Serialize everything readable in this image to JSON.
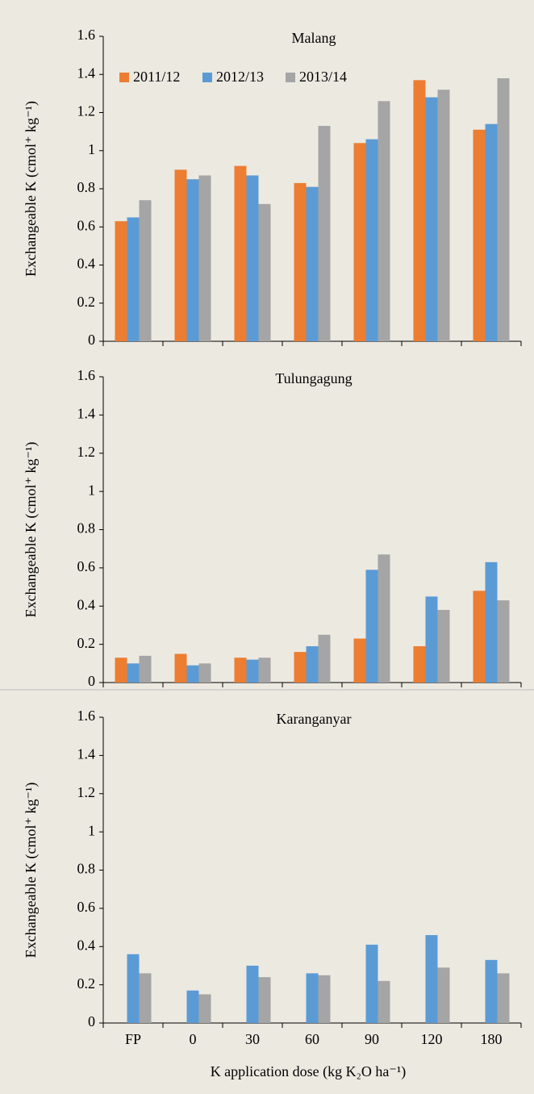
{
  "chart_data": [
    {
      "type": "bar",
      "title": "Malang",
      "y_label": "Exchangeable K (cmol⁺ kg⁻¹)",
      "legend": "top-left",
      "ylim": [
        0,
        1.6
      ],
      "yticks": [
        0,
        0.2,
        0.4,
        0.6,
        0.8,
        1,
        1.2,
        1.4,
        1.6
      ],
      "series": [
        {
          "name": "2011/12",
          "color": "#ed7d31",
          "values": [
            0.63,
            0.9,
            0.92,
            0.83,
            1.04,
            1.37,
            1.11
          ]
        },
        {
          "name": "2012/13",
          "color": "#5b9bd5",
          "values": [
            0.65,
            0.85,
            0.87,
            0.81,
            1.06,
            1.28,
            1.14
          ]
        },
        {
          "name": "2013/14",
          "color": "#a5a5a5",
          "values": [
            0.74,
            0.87,
            0.72,
            1.13,
            1.26,
            1.32,
            1.38
          ]
        }
      ]
    },
    {
      "type": "bar",
      "title": "Tulungagung",
      "y_label": "Exchangeable K (cmol⁺ kg⁻¹)",
      "ylim": [
        0,
        1.6
      ],
      "yticks": [
        0,
        0.2,
        0.4,
        0.6,
        0.8,
        1,
        1.2,
        1.4,
        1.6
      ],
      "series": [
        {
          "color": "#ed7d31",
          "values": [
            0.13,
            0.15,
            0.13,
            0.16,
            0.23,
            0.19,
            0.48
          ]
        },
        {
          "color": "#5b9bd5",
          "values": [
            0.1,
            0.09,
            0.12,
            0.19,
            0.59,
            0.45,
            0.63
          ]
        },
        {
          "color": "#a5a5a5",
          "values": [
            0.14,
            0.1,
            0.13,
            0.25,
            0.67,
            0.38,
            0.43
          ]
        }
      ]
    },
    {
      "type": "bar",
      "title": "Karanganyar",
      "y_label": "Exchangeable K (cmol⁺ kg⁻¹)",
      "x_label": "K application dose (kg K₂O ha⁻¹)",
      "categories": [
        "FP",
        "0",
        "30",
        "60",
        "90",
        "120",
        "180"
      ],
      "ylim": [
        0,
        1.6
      ],
      "yticks": [
        0,
        0.2,
        0.4,
        0.6,
        0.8,
        1,
        1.2,
        1.4,
        1.6
      ],
      "series": [
        {
          "color": "#ed7d31",
          "values": [
            null,
            null,
            null,
            null,
            null,
            null,
            null
          ]
        },
        {
          "color": "#5b9bd5",
          "values": [
            0.36,
            0.17,
            0.3,
            0.26,
            0.41,
            0.46,
            0.33
          ]
        },
        {
          "color": "#a5a5a5",
          "values": [
            0.26,
            0.15,
            0.24,
            0.25,
            0.22,
            0.29,
            0.26
          ]
        }
      ]
    }
  ]
}
